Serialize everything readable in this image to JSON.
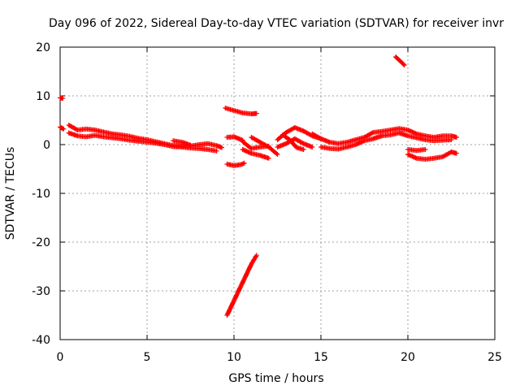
{
  "chart_data": {
    "type": "scatter",
    "title": "Day 096 of 2022, Sidereal Day-to-day VTEC variation (SDTVAR) for receiver invr",
    "xlabel": "GPS time / hours",
    "ylabel": "SDTVAR / TECUs",
    "xlim": [
      0,
      25
    ],
    "ylim": [
      -40,
      20
    ],
    "xticks": [
      "0",
      "5",
      "10",
      "15",
      "20",
      "25"
    ],
    "yticks": [
      "20",
      "10",
      "0",
      "-10",
      "-20",
      "-30",
      "-40"
    ],
    "grid": true,
    "series": [
      {
        "name": "SDTVAR",
        "color": "#ff0000",
        "marker": "plus",
        "segments": [
          [
            [
              0.0,
              9.6
            ],
            [
              0.15,
              9.5
            ]
          ],
          [
            [
              0.0,
              3.6
            ],
            [
              0.2,
              3.2
            ]
          ],
          [
            [
              0.5,
              4.0
            ],
            [
              1.0,
              3.0
            ],
            [
              1.5,
              3.2
            ],
            [
              2.0,
              3.0
            ],
            [
              2.5,
              2.6
            ],
            [
              3.0,
              2.2
            ],
            [
              3.5,
              2.0
            ],
            [
              4.0,
              1.7
            ],
            [
              4.5,
              1.3
            ],
            [
              5.0,
              1.0
            ],
            [
              5.5,
              0.6
            ],
            [
              6.0,
              0.2
            ],
            [
              6.5,
              -0.2
            ],
            [
              7.0,
              -0.3
            ],
            [
              7.5,
              -0.3
            ],
            [
              8.0,
              0.0
            ],
            [
              8.5,
              0.2
            ],
            [
              9.0,
              -0.2
            ],
            [
              9.3,
              -0.6
            ]
          ],
          [
            [
              0.5,
              2.4
            ],
            [
              1.0,
              1.8
            ],
            [
              1.5,
              1.6
            ],
            [
              2.0,
              1.9
            ],
            [
              2.5,
              1.6
            ],
            [
              3.0,
              1.4
            ],
            [
              3.5,
              1.2
            ],
            [
              4.0,
              0.9
            ],
            [
              4.5,
              0.7
            ],
            [
              5.0,
              0.5
            ],
            [
              5.5,
              0.3
            ],
            [
              6.0,
              0.0
            ],
            [
              6.5,
              -0.4
            ],
            [
              7.0,
              -0.5
            ],
            [
              7.5,
              -0.7
            ],
            [
              8.0,
              -0.8
            ],
            [
              8.5,
              -1.0
            ],
            [
              9.0,
              -1.3
            ]
          ],
          [
            [
              6.5,
              0.8
            ],
            [
              7.0,
              0.5
            ],
            [
              7.5,
              -0.1
            ]
          ],
          [
            [
              9.5,
              7.5
            ],
            [
              10.0,
              7.0
            ],
            [
              10.5,
              6.5
            ],
            [
              11.0,
              6.3
            ],
            [
              11.3,
              6.4
            ]
          ],
          [
            [
              9.6,
              1.5
            ],
            [
              10.0,
              1.6
            ],
            [
              10.5,
              0.9
            ]
          ],
          [
            [
              9.6,
              -4.0
            ],
            [
              10.0,
              -4.3
            ],
            [
              10.4,
              -4.1
            ],
            [
              10.6,
              -3.8
            ]
          ],
          [
            [
              9.6,
              -35.0
            ],
            [
              9.8,
              -33.5
            ],
            [
              10.0,
              -32.0
            ],
            [
              10.2,
              -30.5
            ],
            [
              10.4,
              -29.0
            ],
            [
              10.6,
              -27.5
            ],
            [
              10.8,
              -26.0
            ],
            [
              11.0,
              -24.5
            ],
            [
              11.3,
              -22.7
            ]
          ],
          [
            [
              10.5,
              0.6
            ],
            [
              11.0,
              -0.8
            ],
            [
              11.5,
              -0.5
            ],
            [
              12.0,
              -0.3
            ]
          ],
          [
            [
              10.5,
              -1.0
            ],
            [
              11.0,
              -1.8
            ],
            [
              11.5,
              -2.2
            ],
            [
              12.0,
              -2.8
            ]
          ],
          [
            [
              11.0,
              1.5
            ],
            [
              11.5,
              0.5
            ],
            [
              12.0,
              -0.5
            ],
            [
              12.5,
              -2.0
            ]
          ],
          [
            [
              12.5,
              1.0
            ],
            [
              13.0,
              2.5
            ],
            [
              13.5,
              3.5
            ],
            [
              14.0,
              2.8
            ],
            [
              14.5,
              1.8
            ],
            [
              15.0,
              1.2
            ]
          ],
          [
            [
              12.5,
              -0.5
            ],
            [
              13.0,
              0.2
            ],
            [
              13.5,
              1.2
            ],
            [
              14.0,
              0.2
            ],
            [
              14.5,
              -0.5
            ]
          ],
          [
            [
              12.8,
              2.0
            ],
            [
              13.2,
              1.0
            ],
            [
              13.6,
              -0.6
            ],
            [
              14.0,
              -1.0
            ]
          ],
          [
            [
              14.5,
              2.2
            ],
            [
              15.0,
              1.2
            ],
            [
              15.5,
              0.5
            ],
            [
              16.0,
              0.2
            ],
            [
              16.5,
              0.5
            ],
            [
              17.0,
              1.0
            ],
            [
              17.5,
              1.5
            ],
            [
              18.0,
              2.5
            ],
            [
              18.5,
              2.7
            ],
            [
              19.0,
              3.0
            ],
            [
              19.5,
              3.3
            ],
            [
              20.0,
              3.0
            ],
            [
              20.5,
              2.2
            ],
            [
              21.0,
              1.8
            ],
            [
              21.5,
              1.5
            ],
            [
              22.0,
              1.8
            ],
            [
              22.5,
              1.8
            ],
            [
              22.8,
              1.5
            ]
          ],
          [
            [
              15.0,
              -0.5
            ],
            [
              15.5,
              -0.8
            ],
            [
              16.0,
              -0.9
            ],
            [
              16.5,
              -0.5
            ],
            [
              17.0,
              0.0
            ],
            [
              17.5,
              0.8
            ],
            [
              18.0,
              1.2
            ],
            [
              18.5,
              1.8
            ],
            [
              19.0,
              2.0
            ],
            [
              19.5,
              2.4
            ],
            [
              20.0,
              1.8
            ],
            [
              20.5,
              1.4
            ],
            [
              21.0,
              1.0
            ],
            [
              21.5,
              0.8
            ],
            [
              22.0,
              0.9
            ],
            [
              22.5,
              1.0
            ]
          ],
          [
            [
              19.3,
              18.0
            ],
            [
              19.6,
              17.0
            ],
            [
              19.8,
              16.3
            ]
          ],
          [
            [
              20.0,
              -1.0
            ],
            [
              20.5,
              -1.2
            ],
            [
              21.0,
              -1.0
            ]
          ],
          [
            [
              20.0,
              -2.0
            ],
            [
              20.5,
              -2.8
            ],
            [
              21.0,
              -3.0
            ],
            [
              21.5,
              -2.8
            ],
            [
              22.0,
              -2.5
            ],
            [
              22.5,
              -1.5
            ],
            [
              22.8,
              -1.8
            ]
          ]
        ]
      }
    ]
  }
}
